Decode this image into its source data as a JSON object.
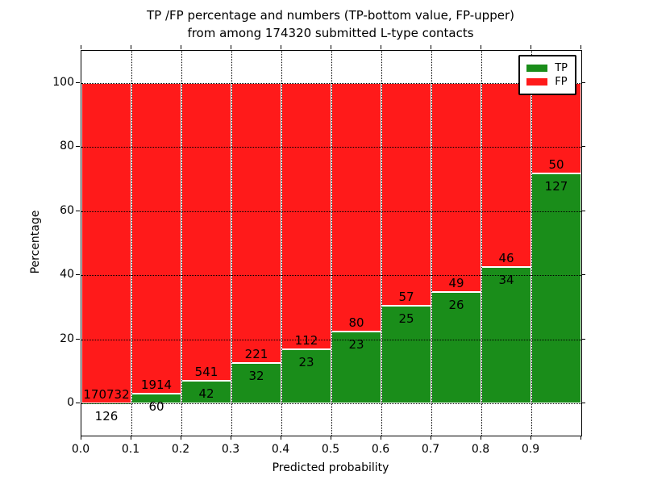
{
  "figure": {
    "title_line1": "TP /FP percentage and numbers (TP-bottom value, FP-upper)",
    "title_line2": "from among 174320 submitted L-type contacts"
  },
  "axes": {
    "xlabel": "Predicted probability",
    "ylabel": "Percentage",
    "x_tick_labels": [
      "0.0",
      "0.1",
      "0.2",
      "0.3",
      "0.4",
      "0.5",
      "0.6",
      "0.7",
      "0.8",
      "0.9"
    ],
    "y_tick_labels": [
      "0",
      "20",
      "40",
      "60",
      "80",
      "100"
    ],
    "y_tick_values": [
      0,
      20,
      40,
      60,
      80,
      100
    ],
    "xlim": [
      0.0,
      1.0
    ],
    "ylim": [
      -10,
      110
    ],
    "grid_style": "dotted"
  },
  "legend": {
    "position": "upper right",
    "items": [
      {
        "label": "TP",
        "color": "#1a8d1a"
      },
      {
        "label": "FP",
        "color": "#ff1a1a"
      }
    ]
  },
  "chart_data": {
    "type": "bar",
    "stacked": true,
    "orientation": "vertical",
    "title": "TP /FP percentage and numbers (TP-bottom value, FP-upper) from among 174320 submitted L-type contacts",
    "xlabel": "Predicted probability",
    "ylabel": "Percentage",
    "total_contacts": 174320,
    "bin_edges": [
      0.0,
      0.1,
      0.2,
      0.3,
      0.4,
      0.5,
      0.6,
      0.7,
      0.8,
      0.9,
      1.0
    ],
    "categories": [
      "0.0-0.1",
      "0.1-0.2",
      "0.2-0.3",
      "0.3-0.4",
      "0.4-0.5",
      "0.5-0.6",
      "0.6-0.7",
      "0.7-0.8",
      "0.8-0.9",
      "0.9-1.0"
    ],
    "series": [
      {
        "name": "TP",
        "color": "#1a8d1a",
        "counts": [
          126,
          60,
          42,
          32,
          23,
          23,
          25,
          26,
          34,
          127
        ],
        "pct": [
          0.07,
          3.04,
          7.2,
          12.65,
          17.04,
          22.33,
          30.49,
          34.67,
          42.5,
          71.75
        ]
      },
      {
        "name": "FP",
        "color": "#ff1a1a",
        "counts": [
          170732,
          1914,
          541,
          221,
          112,
          80,
          57,
          49,
          46,
          50
        ],
        "pct": [
          99.93,
          96.96,
          92.8,
          87.35,
          82.96,
          77.67,
          69.51,
          65.33,
          57.5,
          28.25
        ]
      }
    ],
    "ylim": [
      -10,
      110
    ],
    "grid": true,
    "legend_position": "upper right"
  },
  "colors": {
    "tp": "#1a8d1a",
    "fp": "#ff1a1a",
    "grid": "#000000",
    "frame": "#000000",
    "background": "#ffffff",
    "text": "#000000"
  }
}
